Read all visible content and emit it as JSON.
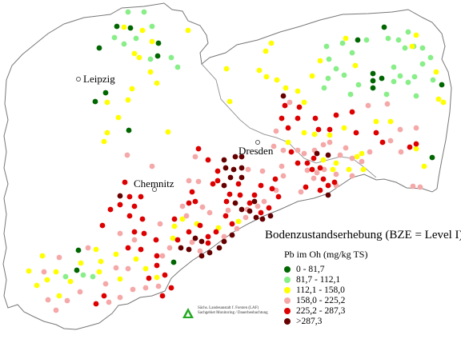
{
  "map": {
    "cities": [
      {
        "name": "Leipzig"
      },
      {
        "name": "Dresden"
      },
      {
        "name": "Chemnitz"
      }
    ]
  },
  "legend": {
    "title": "Bodenzustandserhebung (BZE = Level I)",
    "subtitle": "Pb im Oh (mg/kg TS)",
    "classes": [
      {
        "label": "0 - 81,7",
        "color": "#006600"
      },
      {
        "label": "81,7 - 112,1",
        "color": "#88ee88"
      },
      {
        "label": "112,1 - 158,0",
        "color": "#ffff00"
      },
      {
        "label": "158,0 - 225,2",
        "color": "#f5a8a8"
      },
      {
        "label": "225,2 - 287,3",
        "color": "#dd0000"
      },
      {
        "label": ">287,3",
        "color": "#660000"
      }
    ]
  },
  "credit": {
    "line1": "Sächs. Landesanstalt f. Forsten (LAF)",
    "line2": "Sachgebiet Monitoring / Dauerbeobachtung"
  }
}
